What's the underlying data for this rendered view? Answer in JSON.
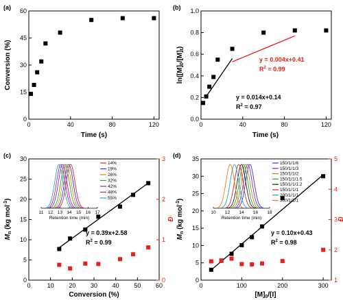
{
  "chart_data": [
    {
      "panel": "(a)",
      "type": "scatter",
      "xlabel": "Time (s)",
      "ylabel": "Conversion (%)",
      "xlim": [
        0,
        125
      ],
      "ylim": [
        0,
        60
      ],
      "xticks": [
        0,
        40,
        80,
        120
      ],
      "yticks": [
        0,
        15,
        30,
        45,
        60
      ],
      "series": [
        {
          "x": [
            2,
            5,
            8,
            12,
            16,
            30,
            60,
            90,
            120
          ],
          "y": [
            14,
            19,
            26,
            32,
            42,
            48,
            55,
            56,
            56
          ],
          "color": "#000000"
        }
      ]
    },
    {
      "panel": "(b)",
      "type": "scatter",
      "xlabel": "Time (s)",
      "ylabel": "ln([M]0/[M]t)",
      "xlim": [
        0,
        125
      ],
      "ylim": [
        0,
        1.0
      ],
      "xticks": [
        0,
        40,
        80,
        120
      ],
      "yticks": [
        0.0,
        0.2,
        0.4,
        0.6,
        0.8,
        1.0
      ],
      "series": [
        {
          "x": [
            2,
            5,
            8,
            12,
            16,
            30,
            60,
            90,
            120
          ],
          "y": [
            0.15,
            0.21,
            0.3,
            0.39,
            0.55,
            0.65,
            0.8,
            0.82,
            0.82
          ],
          "color": "#000000"
        }
      ],
      "fits": [
        {
          "equation": "y = 0.014x+0.14",
          "r2": "0.97",
          "x": [
            5,
            30
          ],
          "color": "#000000"
        },
        {
          "equation": "y = 0.004x+0.41",
          "r2": "0.99",
          "x": [
            30,
            90
          ],
          "color": "#e8201a"
        }
      ]
    },
    {
      "panel": "(c)",
      "type": "scatter",
      "xlabel": "Conversion (%)",
      "ylabel": "Mn (kg mol-1)",
      "ylabel2": "Đ",
      "xlim": [
        0,
        60
      ],
      "ylim": [
        0,
        30
      ],
      "ylim2": [
        0,
        3
      ],
      "xticks": [
        0,
        10,
        20,
        30,
        40,
        50,
        60
      ],
      "yticks": [
        0,
        5,
        10,
        15,
        20,
        25,
        30
      ],
      "yticks2": [
        0,
        1,
        2,
        3
      ],
      "series": [
        {
          "name": "Mn",
          "x": [
            14,
            19,
            26,
            32,
            42,
            48,
            55
          ],
          "y": [
            7.7,
            10.3,
            12.5,
            15.7,
            18.2,
            21.1,
            24.0
          ],
          "color": "#000000"
        },
        {
          "name": "Đ",
          "x": [
            14,
            19,
            26,
            32,
            42,
            48,
            55
          ],
          "y2": [
            0.38,
            0.29,
            0.41,
            0.4,
            0.52,
            0.64,
            0.81
          ],
          "color": "#e8201a"
        }
      ],
      "fit": {
        "equation": "y = 0.39x+2.58",
        "r2": "0.99",
        "x": [
          14,
          55
        ]
      },
      "inset": {
        "xlabel": "Retention time (min)",
        "xticks": [
          11,
          12,
          13,
          14,
          15,
          16,
          17
        ],
        "xlim": [
          11,
          17
        ],
        "legend": [
          "14%",
          "19%",
          "26%",
          "32%",
          "42%",
          "48%",
          "55%"
        ],
        "peaks": [
          14.15,
          13.95,
          13.75,
          13.55,
          13.3,
          13.1,
          12.9
        ],
        "colors": [
          "#e8201a",
          "#2e3bd6",
          "#f07c18",
          "#2aa52a",
          "#7b2cc9",
          "#c21c8a",
          "#18a8c8"
        ]
      }
    },
    {
      "panel": "(d)",
      "type": "scatter",
      "xlabel": "[M]0/[I]",
      "ylabel": "Mn (kg mol-1)",
      "ylabel2": "Đ",
      "xlim": [
        0,
        320
      ],
      "ylim": [
        0,
        35
      ],
      "ylim2": [
        1,
        5
      ],
      "xticks": [
        0,
        100,
        200,
        300
      ],
      "yticks": [
        0,
        5,
        10,
        15,
        20,
        25,
        30,
        35
      ],
      "yticks2": [
        1,
        2,
        3,
        4,
        5
      ],
      "series": [
        {
          "name": "Mn",
          "x": [
            25,
            50,
            75,
            100,
            125,
            150,
            200,
            300
          ],
          "y": [
            3.0,
            5.6,
            7.6,
            10.1,
            12.4,
            15.5,
            23.7,
            30.0
          ],
          "color": "#000000"
        },
        {
          "name": "Đ",
          "x": [
            25,
            50,
            75,
            100,
            125,
            150,
            200,
            300
          ],
          "y2": [
            1.62,
            1.65,
            1.71,
            1.53,
            1.52,
            1.55,
            1.63,
            2.0
          ],
          "color": "#e8201a"
        }
      ],
      "fit": {
        "equation": "y = 0.10x+0.43",
        "r2": "0.98",
        "x": [
          25,
          300
        ]
      },
      "inset": {
        "xlabel": "Retention time (min)",
        "xticks": [
          10,
          12,
          14,
          16,
          18
        ],
        "xlim": [
          10,
          18
        ],
        "legend": [
          "150/1/1/6",
          "150/1/1/3",
          "150/1/1/2",
          "150/1/1/1.5",
          "150/1/1/1.2",
          "150/1/1/1",
          "200/1/1/1",
          "300/1/1/1"
        ],
        "peaks": [
          15.2,
          14.9,
          14.6,
          14.3,
          14.0,
          13.6,
          13.0,
          12.4
        ],
        "colors": [
          "#2e3bd6",
          "#7b2cc9",
          "#b8860b",
          "#2aa52a",
          "#1c1c1c",
          "#e8201a",
          "#18a8c8",
          "#f07c18"
        ]
      }
    }
  ]
}
